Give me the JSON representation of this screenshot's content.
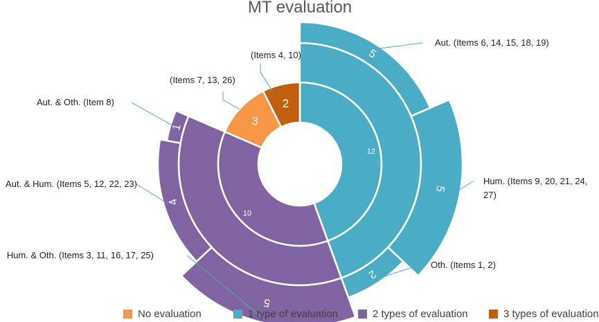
{
  "chart_data": {
    "type": "pie",
    "title": "MT evaluation",
    "legend_position": "bottom",
    "inner_ring": [
      {
        "category": "No evaluation",
        "value": 3,
        "label": "3"
      },
      {
        "category": "1 type of evaluation",
        "value": 12,
        "label": "12"
      },
      {
        "category": "2 types of evaluation",
        "value": 10,
        "label": "10"
      },
      {
        "category": "3 types of evaluation",
        "value": 2,
        "label": "2"
      }
    ],
    "outer_ring": [
      {
        "parent": "1 type of evaluation",
        "value": 5,
        "label": "5",
        "annotation": "Aut.  (Items 6, 14, 15, 18, 19)"
      },
      {
        "parent": "1 type of evaluation",
        "value": 5,
        "label": "5",
        "annotation": "Hum. (Items 9, 20, 21, 24, 27)"
      },
      {
        "parent": "1 type of evaluation",
        "value": 2,
        "label": "2",
        "annotation": "Oth. (Items 1, 2)"
      },
      {
        "parent": "2 types of evaluation",
        "value": 5,
        "label": "5",
        "annotation": "Hum. & Oth. (Items 3, 11, 16, 17, 25)"
      },
      {
        "parent": "2 types of evaluation",
        "value": 4,
        "label": "4",
        "annotation": "Aut. & Hum. (Items 5, 12, 22, 23)"
      },
      {
        "parent": "2 types of evaluation",
        "value": 1,
        "label": "1",
        "annotation": "Aut. & Oth. (Item 8)"
      }
    ],
    "inner_annotations": [
      {
        "category": "3 types of evaluation",
        "text": "(Items 4, 10)"
      },
      {
        "category": "No evaluation",
        "text": "(Items 7, 13, 26)"
      }
    ],
    "legend": [
      {
        "label": "No evaluation",
        "color": "#F79646"
      },
      {
        "label": "1 type of evaluation",
        "color": "#4BACC6"
      },
      {
        "label": "2 types of evaluation",
        "color": "#8064A2"
      },
      {
        "label": "3 types of evaluation",
        "color": "#C0600F"
      }
    ]
  }
}
